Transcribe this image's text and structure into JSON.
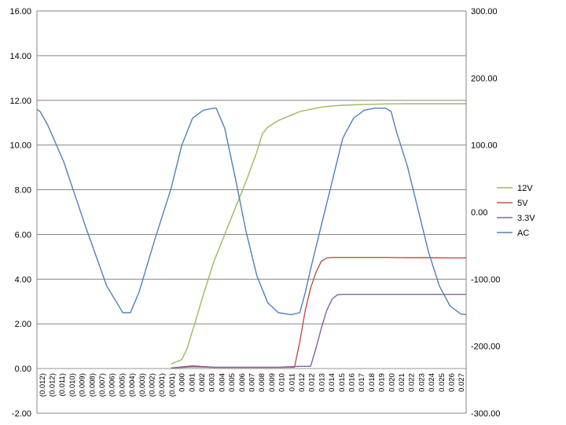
{
  "chart_data": {
    "type": "line",
    "title": "",
    "xlabel": "",
    "ylabel": "",
    "grid": true,
    "legend_position": "right",
    "y_left": {
      "ylim": [
        -2,
        16
      ],
      "ticks": [
        "-2.00",
        "0.00",
        "2.00",
        "4.00",
        "6.00",
        "8.00",
        "10.00",
        "12.00",
        "14.00",
        "16.00"
      ]
    },
    "y_right": {
      "ylim": [
        -300,
        300
      ],
      "ticks": [
        "-300.00",
        "-200.00",
        "-100.00",
        "0.00",
        "100.00",
        "200.00",
        "300.00"
      ]
    },
    "x_tick_labels": [
      "(0.012)",
      "(0.012)",
      "(0.011)",
      "(0.010)",
      "(0.009)",
      "(0.008)",
      "(0.007)",
      "(0.006)",
      "(0.005)",
      "(0.004)",
      "(0.003)",
      "(0.002)",
      "(0.001)",
      "(0.001)",
      "0.000",
      "0.001",
      "0.002",
      "0.003",
      "0.004",
      "0.005",
      "0.006",
      "0.007",
      "0.008",
      "0.009",
      "0.010",
      "0.011",
      "0.012",
      "0.012",
      "0.013",
      "0.014",
      "0.015",
      "0.016",
      "0.017",
      "0.018",
      "0.019",
      "0.020",
      "0.021",
      "0.022",
      "0.023",
      "0.024",
      "0.025",
      "0.026",
      "0.027"
    ],
    "series": [
      {
        "name": "12V",
        "axis": "left",
        "color": "#9bbb59",
        "x": [
          0.0,
          0.0005,
          0.001,
          0.0015,
          0.002,
          0.0022,
          0.003,
          0.004,
          0.005,
          0.006,
          0.007,
          0.008,
          0.0085,
          0.009,
          0.01,
          0.011,
          0.012,
          0.013,
          0.014,
          0.015,
          0.016,
          0.018,
          0.02,
          0.022,
          0.024,
          0.026,
          0.0275
        ],
        "values": [
          0.2,
          0.3,
          0.4,
          0.9,
          1.7,
          2.0,
          3.3,
          4.8,
          6.0,
          7.2,
          8.4,
          9.7,
          10.5,
          10.8,
          11.1,
          11.3,
          11.5,
          11.6,
          11.7,
          11.75,
          11.78,
          11.82,
          11.84,
          11.85,
          11.85,
          11.85,
          11.85
        ]
      },
      {
        "name": "5V",
        "axis": "left",
        "color": "#c0504d",
        "x": [
          0.0,
          0.002,
          0.004,
          0.006,
          0.008,
          0.01,
          0.0115,
          0.012,
          0.0125,
          0.013,
          0.0135,
          0.014,
          0.0145,
          0.015,
          0.016,
          0.018,
          0.02,
          0.022,
          0.024,
          0.026,
          0.0275
        ],
        "values": [
          0.02,
          0.08,
          0.05,
          0.05,
          0.05,
          0.05,
          0.06,
          1.2,
          2.6,
          3.6,
          4.3,
          4.8,
          4.95,
          4.97,
          4.97,
          4.97,
          4.97,
          4.96,
          4.96,
          4.95,
          4.95
        ]
      },
      {
        "name": "3.3V",
        "axis": "left",
        "color": "#8064a2",
        "x": [
          0.0,
          0.002,
          0.004,
          0.006,
          0.008,
          0.01,
          0.012,
          0.013,
          0.0135,
          0.014,
          0.0145,
          0.015,
          0.0155,
          0.016,
          0.018,
          0.02,
          0.022,
          0.024,
          0.026,
          0.0275
        ],
        "values": [
          0.02,
          0.12,
          0.06,
          0.06,
          0.06,
          0.06,
          0.1,
          0.1,
          0.9,
          1.8,
          2.6,
          3.1,
          3.3,
          3.32,
          3.32,
          3.32,
          3.32,
          3.32,
          3.32,
          3.32
        ]
      },
      {
        "name": "AC",
        "axis": "right",
        "color": "#4f81bd",
        "x": [
          -0.0125,
          -0.0122,
          -0.0115,
          -0.01,
          -0.008,
          -0.006,
          -0.0045,
          -0.0038,
          -0.003,
          -0.0015,
          0.0,
          0.001,
          0.002,
          0.003,
          0.004,
          0.0042,
          0.005,
          0.006,
          0.007,
          0.008,
          0.009,
          0.01,
          0.0112,
          0.012,
          0.0125,
          0.013,
          0.014,
          0.015,
          0.016,
          0.017,
          0.018,
          0.019,
          0.02,
          0.0205,
          0.021,
          0.022,
          0.023,
          0.024,
          0.025,
          0.026,
          0.027,
          0.0275
        ],
        "values": [
          153,
          150,
          130,
          75,
          -20,
          -110,
          -150,
          -150,
          -120,
          -40,
          35,
          100,
          140,
          152,
          155,
          155,
          125,
          50,
          -30,
          -95,
          -135,
          -150,
          -153,
          -150,
          -120,
          -85,
          -20,
          45,
          110,
          140,
          152,
          155,
          155,
          150,
          120,
          70,
          5,
          -60,
          -110,
          -140,
          -152,
          -153
        ]
      }
    ]
  }
}
